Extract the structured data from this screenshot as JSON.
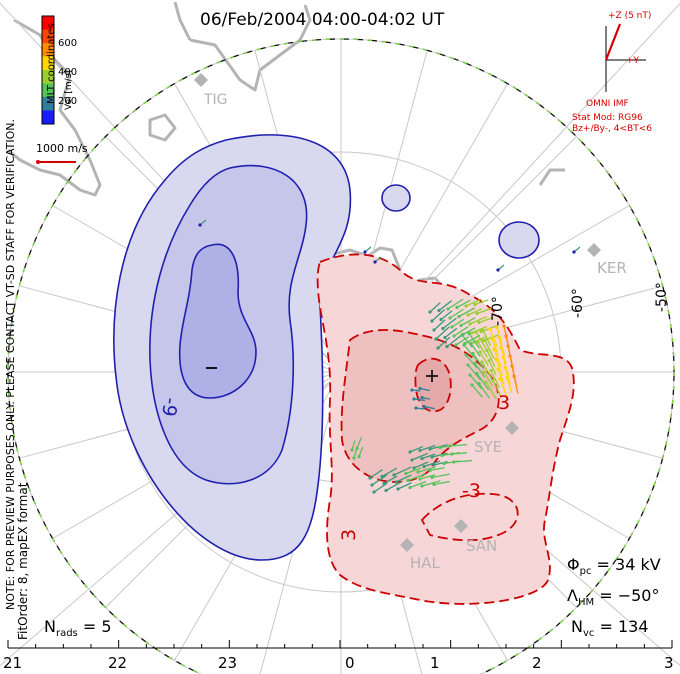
{
  "title": "06/Feb/2004 04:00-04:02 UT",
  "coordinates_label": "MLT coordinates",
  "colorbar": {
    "label": "Vel [m/s]",
    "ticks": [
      "600",
      "400",
      "200"
    ],
    "colors": [
      "#1a1aff",
      "#2f7f9a",
      "#56c25a",
      "#9acd32",
      "#ffd700",
      "#ff8c00",
      "#ff4500",
      "#ff0000"
    ]
  },
  "scale_vector": {
    "label": "1000 m/s",
    "color": "#d40000"
  },
  "imf": {
    "clock_label_z": "+Z (5 nT)",
    "clock_label_y": "+Y",
    "source": "OMNI IMF",
    "stat_model": "Stat Mod: RG96",
    "condition": "Bz+/By-, 4<BT<6",
    "color": "#d40000"
  },
  "side_notes": {
    "preview": "NOTE: FOR PREVIEW PURPOSES ONLY. PLEASE CONTACT VT-SD STAFF FOR VERIFICATION.",
    "fit": "FitOrder: 8, mapEX format"
  },
  "stations": [
    "TIG",
    "KER",
    "SYE",
    "SAN",
    "HAL"
  ],
  "latitude_labels": [
    "-70°",
    "-60°",
    "-50°"
  ],
  "contour_labels": [
    "-9",
    "3",
    "-3",
    "3"
  ],
  "extrema": {
    "min_marker": "−",
    "max_marker": "+"
  },
  "hour_ticks": [
    "21",
    "22",
    "23",
    "0",
    "1",
    "2",
    "3"
  ],
  "stats": {
    "nrads_label": "N",
    "nrads_sub": "rads",
    "nrads_value": "= 5",
    "phi_label": "Φ",
    "phi_sub": "pc",
    "phi_value": "= 34 kV",
    "lhm_label": "Λ",
    "lhm_sub": "HM",
    "lhm_value": "= −50°",
    "nvc_label": "N",
    "nvc_sub": "vc",
    "nvc_value": "= 134"
  },
  "colors": {
    "negative_cell": "#2020b0",
    "negative_fill": "#d8d8ef",
    "positive_cell": "#cc0000",
    "positive_fill": "#f6d6d6",
    "grid": "#c8c8c8",
    "coast": "#b4b4b4",
    "boundary_green": "#7ddc3c"
  }
}
